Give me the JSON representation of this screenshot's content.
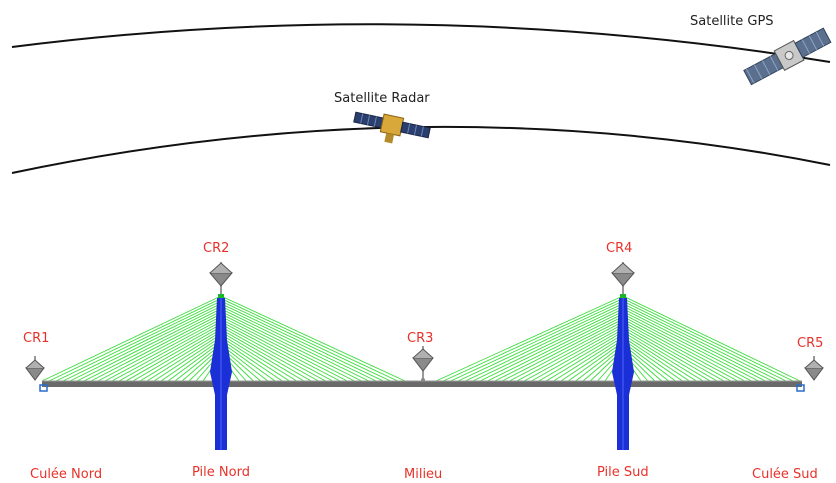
{
  "satellites": {
    "gps": {
      "label": "Satellite GPS"
    },
    "radar": {
      "label": "Satellite Radar"
    }
  },
  "reflectors": [
    {
      "id": "cr1",
      "label": "CR1"
    },
    {
      "id": "cr2",
      "label": "CR2"
    },
    {
      "id": "cr3",
      "label": "CR3"
    },
    {
      "id": "cr4",
      "label": "CR4"
    },
    {
      "id": "cr5",
      "label": "CR5"
    }
  ],
  "supports": [
    {
      "id": "culee-nord",
      "label": "Culée Nord"
    },
    {
      "id": "pile-nord",
      "label": "Pile Nord"
    },
    {
      "id": "milieu",
      "label": "Milieu"
    },
    {
      "id": "pile-sud",
      "label": "Pile Sud"
    },
    {
      "id": "culee-sud",
      "label": "Culée Sud"
    }
  ],
  "colors": {
    "label_red": "#e8312a",
    "cables": "#3ddc3d",
    "pylon": "#1b2fd6",
    "deck": "#6a6a6a",
    "orbit": "#111111"
  }
}
